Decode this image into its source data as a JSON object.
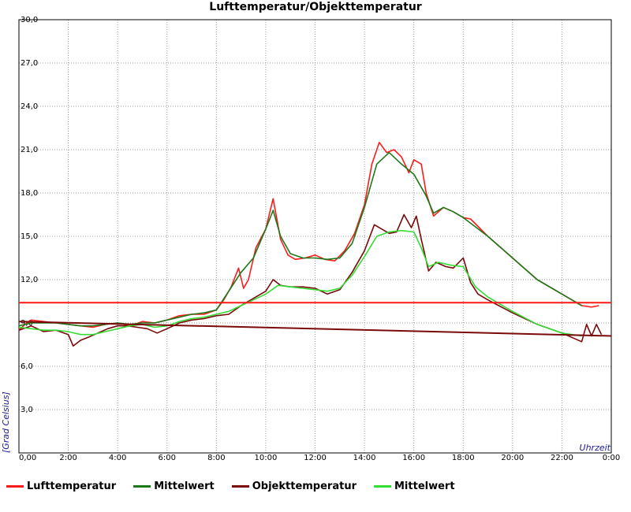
{
  "chart_data": {
    "type": "line",
    "title": "Lufttemperatur/Objekttemperatur",
    "xlabel": "Uhrzeit",
    "ylabel": "[Grad Celsius]",
    "xlim": [
      0,
      24
    ],
    "ylim": [
      0,
      30
    ],
    "grid": true,
    "legend_position": "bottom",
    "x_ticks": [
      {
        "value": 0,
        "label": "0,00"
      },
      {
        "value": 2,
        "label": "2:00"
      },
      {
        "value": 4,
        "label": "4:00"
      },
      {
        "value": 6,
        "label": "6:00"
      },
      {
        "value": 8,
        "label": "8:00"
      },
      {
        "value": 10,
        "label": "10:00"
      },
      {
        "value": 12,
        "label": "12:00"
      },
      {
        "value": 14,
        "label": "14:00"
      },
      {
        "value": 16,
        "label": "16:00"
      },
      {
        "value": 18,
        "label": "18:00"
      },
      {
        "value": 20,
        "label": "20:00"
      },
      {
        "value": 22,
        "label": "22:00"
      },
      {
        "value": 24,
        "label": "0:00"
      }
    ],
    "y_ticks": [
      {
        "value": 0,
        "label": ""
      },
      {
        "value": 3,
        "label": "3,0"
      },
      {
        "value": 6,
        "label": "6,0"
      },
      {
        "value": 9,
        "label": "9,0"
      },
      {
        "value": 12,
        "label": "12,0"
      },
      {
        "value": 15,
        "label": "15,0"
      },
      {
        "value": 18,
        "label": "18,0"
      },
      {
        "value": 21,
        "label": "21,0"
      },
      {
        "value": 24,
        "label": "24,0"
      },
      {
        "value": 27,
        "label": "27,0"
      },
      {
        "value": 30,
        "label": "30,0"
      }
    ],
    "series": [
      {
        "name": "Lufttemperatur",
        "color": "#ff1a1a",
        "x": [
          0,
          0.25,
          0.5,
          1.0,
          1.5,
          2.0,
          2.5,
          3.0,
          3.5,
          4.0,
          4.5,
          5.0,
          5.5,
          6.0,
          6.5,
          7.0,
          7.5,
          8.0,
          8.3,
          8.6,
          8.9,
          9.1,
          9.3,
          9.6,
          10.0,
          10.3,
          10.6,
          10.9,
          11.2,
          11.6,
          12.0,
          12.4,
          12.8,
          13.2,
          13.6,
          14.0,
          14.3,
          14.6,
          14.9,
          15.2,
          15.5,
          15.8,
          16.0,
          16.3,
          16.5,
          16.8,
          17.2,
          17.6,
          18.0,
          18.3,
          19.0,
          20.0,
          21.0,
          22.0,
          22.8,
          23.2,
          23.5
        ],
        "y": [
          8.5,
          8.9,
          9.2,
          9.1,
          9.0,
          8.9,
          8.8,
          8.7,
          8.9,
          9.0,
          8.8,
          9.1,
          9.0,
          9.2,
          9.5,
          9.6,
          9.6,
          9.9,
          10.6,
          11.5,
          12.8,
          11.4,
          12.0,
          14.2,
          15.5,
          17.6,
          14.8,
          13.7,
          13.4,
          13.5,
          13.7,
          13.4,
          13.3,
          14.0,
          15.2,
          17.2,
          20.0,
          21.5,
          20.8,
          21.0,
          20.5,
          19.4,
          20.3,
          20.0,
          18.0,
          16.4,
          17.0,
          16.7,
          16.3,
          16.2,
          15.0,
          13.5,
          12.0,
          11.0,
          10.2,
          10.1,
          10.2
        ]
      },
      {
        "name": "Mittelwert",
        "color": "#1a7a1a",
        "x": [
          0,
          0.5,
          1.0,
          1.5,
          2.0,
          2.5,
          3.0,
          3.5,
          4.0,
          4.5,
          5.0,
          5.5,
          6.0,
          6.5,
          7.0,
          7.5,
          8.0,
          8.5,
          9.0,
          9.5,
          10.0,
          10.3,
          10.6,
          11.0,
          11.5,
          12.0,
          12.5,
          13.0,
          13.5,
          14.0,
          14.5,
          15.0,
          15.5,
          16.0,
          16.5,
          16.8,
          17.2,
          17.6,
          18.0,
          19.0,
          20.0,
          21.0,
          22.0,
          22.8
        ],
        "y": [
          8.8,
          9.0,
          9.0,
          9.0,
          8.9,
          8.8,
          8.8,
          8.9,
          9.0,
          8.9,
          9.0,
          9.0,
          9.2,
          9.4,
          9.6,
          9.7,
          9.9,
          11.2,
          12.5,
          13.5,
          15.5,
          16.8,
          15.0,
          13.8,
          13.5,
          13.5,
          13.4,
          13.5,
          14.5,
          17.0,
          20.0,
          20.8,
          20.0,
          19.3,
          17.8,
          16.6,
          17.0,
          16.7,
          16.3,
          15.0,
          13.5,
          12.0,
          11.0,
          10.2
        ]
      },
      {
        "name": "Objekttemperatur",
        "color": "#7a0a0a",
        "x": [
          0,
          0.5,
          1.0,
          1.5,
          2.0,
          2.2,
          2.5,
          2.8,
          3.2,
          3.6,
          4.0,
          4.4,
          4.8,
          5.2,
          5.6,
          6.0,
          6.5,
          7.0,
          7.5,
          8.0,
          8.5,
          9.0,
          9.5,
          10.0,
          10.3,
          10.6,
          11.0,
          11.5,
          12.0,
          12.5,
          13.0,
          13.5,
          14.0,
          14.4,
          14.7,
          15.0,
          15.3,
          15.6,
          15.9,
          16.1,
          16.3,
          16.6,
          16.9,
          17.3,
          17.6,
          18.0,
          18.3,
          18.6,
          19.0,
          20.0,
          21.0,
          22.0,
          22.8,
          23.0,
          23.2,
          23.4,
          23.6
        ],
        "y": [
          8.5,
          8.8,
          8.4,
          8.5,
          8.2,
          7.4,
          7.8,
          8.0,
          8.3,
          8.6,
          8.8,
          8.8,
          8.7,
          8.6,
          8.3,
          8.6,
          9.0,
          9.2,
          9.3,
          9.5,
          9.6,
          10.2,
          10.7,
          11.2,
          12.0,
          11.6,
          11.5,
          11.5,
          11.4,
          11.0,
          11.3,
          12.5,
          14.0,
          15.8,
          15.5,
          15.2,
          15.3,
          16.5,
          15.6,
          16.4,
          14.8,
          12.6,
          13.2,
          12.9,
          12.8,
          13.5,
          11.8,
          11.0,
          10.6,
          9.7,
          8.9,
          8.3,
          7.7,
          8.9,
          8.1,
          8.9,
          8.2
        ]
      },
      {
        "name": "Mittelwert",
        "color": "#33dd33",
        "x": [
          0,
          0.5,
          1.0,
          1.5,
          2.0,
          2.5,
          3.0,
          3.5,
          4.0,
          4.5,
          5.0,
          5.5,
          6.0,
          6.5,
          7.0,
          7.5,
          8.0,
          8.5,
          9.0,
          9.5,
          10.0,
          10.5,
          11.0,
          11.5,
          12.0,
          12.5,
          13.0,
          13.5,
          14.0,
          14.5,
          15.0,
          15.5,
          16.0,
          16.3,
          16.6,
          17.0,
          17.5,
          18.0,
          18.5,
          19.0,
          20.0,
          21.0,
          22.0,
          22.8
        ],
        "y": [
          8.7,
          8.6,
          8.5,
          8.5,
          8.4,
          8.2,
          8.2,
          8.4,
          8.6,
          8.8,
          8.9,
          8.7,
          8.8,
          9.1,
          9.3,
          9.4,
          9.6,
          9.8,
          10.2,
          10.6,
          11.0,
          11.6,
          11.5,
          11.4,
          11.3,
          11.2,
          11.4,
          12.3,
          13.6,
          15.0,
          15.3,
          15.4,
          15.3,
          14.2,
          12.9,
          13.2,
          13.0,
          12.9,
          11.5,
          10.8,
          9.8,
          8.9,
          8.3,
          8.1
        ]
      },
      {
        "name": "",
        "color": "#ff1a1a",
        "x": [
          0,
          24
        ],
        "y": [
          10.4,
          10.4
        ]
      },
      {
        "name": "",
        "color": "#7a0a0a",
        "x": [
          0,
          24
        ],
        "y": [
          9.1,
          8.1
        ]
      }
    ],
    "legend": [
      {
        "label": "Lufttemperatur",
        "color": "#ff1a1a"
      },
      {
        "label": "Mittelwert",
        "color": "#1a7a1a"
      },
      {
        "label": "Objekttemperatur",
        "color": "#7a0a0a"
      },
      {
        "label": "Mittelwert",
        "color": "#33dd33"
      }
    ]
  }
}
